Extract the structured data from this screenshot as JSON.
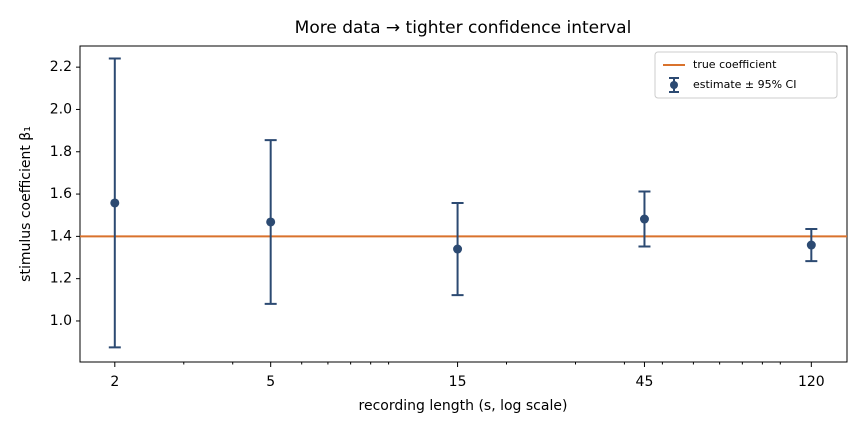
{
  "chart_data": {
    "type": "errorbar",
    "title": "More data → tighter confidence interval",
    "xlabel": "recording length (s, log scale)",
    "ylabel": "stimulus coefficient β₁",
    "xscale": "log",
    "x": [
      2,
      5,
      15,
      45,
      120
    ],
    "series": [
      {
        "name": "estimate ± 95% CI",
        "color": "#2c4a72",
        "values": [
          1.558,
          1.468,
          1.34,
          1.482,
          1.359
        ],
        "errors": [
          0.683,
          0.387,
          0.218,
          0.13,
          0.076
        ]
      }
    ],
    "reference_line": {
      "name": "true coefficient",
      "value": 1.4,
      "color": "#d9722c"
    },
    "xlim": [
      1.63,
      148
    ],
    "ylim": [
      0.806,
      2.3
    ],
    "xticks": [
      2,
      5,
      15,
      45,
      120
    ],
    "xminorticks": [
      3,
      4,
      6,
      7,
      8,
      9,
      10,
      20,
      30,
      40,
      50,
      60,
      70,
      80,
      90,
      100
    ],
    "yticks": [
      {
        "value": 1.0,
        "label": "1.0"
      },
      1.2,
      1.4,
      1.6,
      1.8,
      {
        "value": 2.0,
        "label": "2.0"
      },
      2.2
    ],
    "legend": "upper right"
  }
}
